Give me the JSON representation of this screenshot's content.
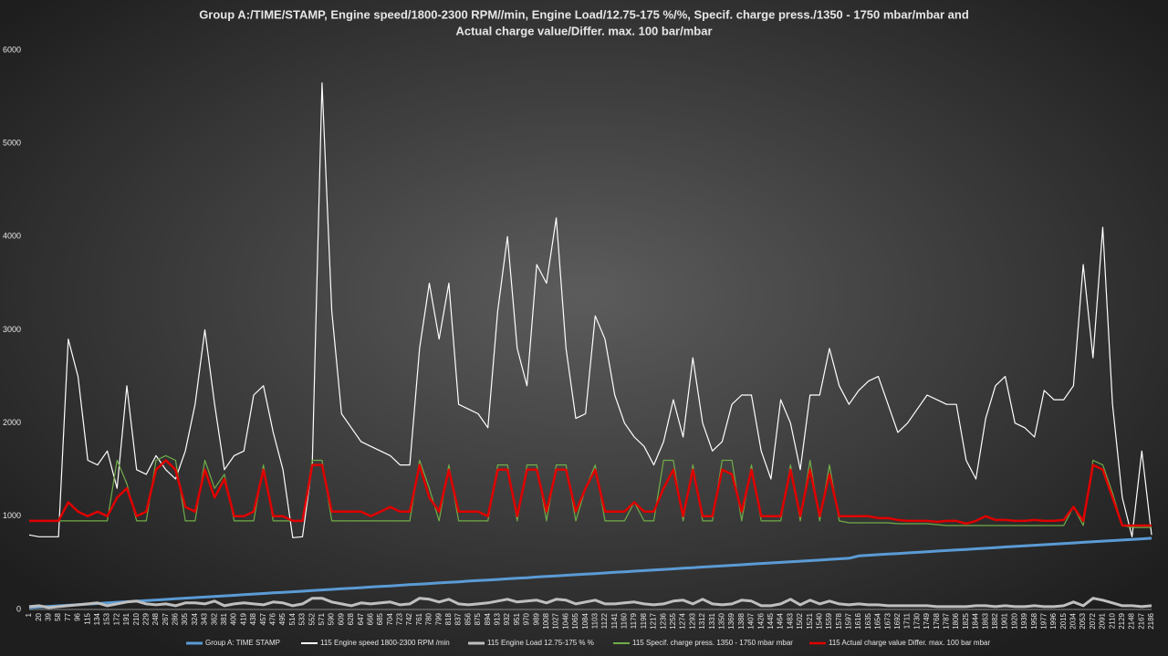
{
  "chart_data": {
    "type": "line",
    "title": [
      "Group A:/TIME/STAMP, Engine speed/1800-2300 RPM//min, Engine Load/12.75-175 %/%, Specif. charge press./1350 - 1750 mbar/mbar and",
      "Actual charge value/Differ. max. 100 bar/mbar"
    ],
    "categories": [
      1,
      20,
      39,
      58,
      77,
      96,
      115,
      134,
      153,
      172,
      191,
      210,
      229,
      248,
      267,
      286,
      305,
      324,
      343,
      362,
      381,
      400,
      419,
      438,
      457,
      476,
      495,
      514,
      533,
      552,
      571,
      590,
      609,
      628,
      647,
      666,
      685,
      704,
      723,
      742,
      761,
      780,
      799,
      818,
      837,
      856,
      875,
      894,
      913,
      932,
      951,
      970,
      989,
      1008,
      1027,
      1046,
      1065,
      1084,
      1103,
      1122,
      1141,
      1160,
      1179,
      1198,
      1217,
      1236,
      1255,
      1274,
      1293,
      1312,
      1331,
      1350,
      1369,
      1388,
      1407,
      1426,
      1445,
      1464,
      1483,
      1502,
      1521,
      1540,
      1559,
      1578,
      1597,
      1616,
      1635,
      1654,
      1673,
      1692,
      1711,
      1730,
      1749,
      1768,
      1787,
      1806,
      1825,
      1844,
      1863,
      1882,
      1901,
      1920,
      1939,
      1958,
      1977,
      1996,
      2015,
      2034,
      2053,
      2072,
      2091,
      2110,
      2129,
      2148,
      2167,
      2186
    ],
    "series": [
      {
        "name": "Group A: TIME STAMP",
        "color": "#5b9bd5",
        "width": 3,
        "values": [
          20,
          26,
          33,
          39,
          45,
          52,
          58,
          64,
          70,
          77,
          83,
          89,
          96,
          102,
          108,
          115,
          121,
          127,
          133,
          140,
          146,
          152,
          159,
          165,
          171,
          178,
          184,
          190,
          196,
          203,
          209,
          215,
          222,
          228,
          234,
          241,
          247,
          253,
          259,
          266,
          272,
          278,
          285,
          291,
          297,
          304,
          310,
          316,
          322,
          329,
          335,
          341,
          348,
          354,
          360,
          367,
          373,
          379,
          385,
          392,
          398,
          404,
          411,
          417,
          423,
          430,
          436,
          442,
          448,
          455,
          461,
          467,
          474,
          480,
          486,
          493,
          499,
          505,
          511,
          518,
          524,
          530,
          537,
          543,
          549,
          575,
          581,
          588,
          594,
          600,
          607,
          613,
          619,
          626,
          632,
          638,
          644,
          651,
          657,
          663,
          670,
          676,
          682,
          689,
          695,
          701,
          707,
          714,
          720,
          726,
          733,
          739,
          745,
          752,
          758,
          764
        ]
      },
      {
        "name": "115 Engine speed 1800-2300 RPM /min",
        "color": "#ffffff",
        "width": 1.2,
        "values": [
          800,
          780,
          780,
          780,
          2900,
          2500,
          1600,
          1550,
          1700,
          1300,
          2400,
          1500,
          1450,
          1650,
          1500,
          1400,
          1700,
          2200,
          3000,
          2200,
          1500,
          1650,
          1700,
          2300,
          2400,
          1900,
          1500,
          770,
          780,
          1550,
          5650,
          3200,
          2100,
          1950,
          1800,
          1750,
          1700,
          1650,
          1550,
          1550,
          2800,
          3500,
          2900,
          3500,
          2200,
          2150,
          2100,
          1950,
          3200,
          4000,
          2800,
          2400,
          3700,
          3500,
          4200,
          2800,
          2050,
          2100,
          3150,
          2900,
          2300,
          2000,
          1850,
          1750,
          1550,
          1800,
          2250,
          1850,
          2700,
          2000,
          1700,
          1800,
          2200,
          2300,
          2300,
          1700,
          1400,
          2250,
          2000,
          1500,
          2300,
          2300,
          2800,
          2400,
          2200,
          2350,
          2450,
          2500,
          2200,
          1900,
          2000,
          2150,
          2300,
          2250,
          2200,
          2200,
          1600,
          1400,
          2050,
          2400,
          2500,
          2000,
          1950,
          1850,
          2350,
          2250,
          2250,
          2400,
          3700,
          2700,
          4100,
          2200,
          1200,
          780,
          1700,
          800
        ]
      },
      {
        "name": "115 Engine Load 12.75-175 % %",
        "color": "#bfbfbf",
        "width": 3,
        "values": [
          30,
          40,
          20,
          30,
          40,
          50,
          60,
          70,
          40,
          60,
          80,
          90,
          60,
          50,
          60,
          40,
          70,
          70,
          60,
          90,
          40,
          60,
          70,
          60,
          50,
          80,
          70,
          40,
          60,
          120,
          120,
          80,
          60,
          40,
          70,
          60,
          70,
          80,
          50,
          60,
          120,
          110,
          80,
          110,
          60,
          50,
          60,
          70,
          90,
          110,
          80,
          90,
          100,
          70,
          110,
          100,
          60,
          80,
          100,
          60,
          60,
          70,
          80,
          60,
          50,
          60,
          90,
          100,
          60,
          110,
          60,
          50,
          60,
          100,
          90,
          40,
          40,
          60,
          110,
          50,
          100,
          60,
          90,
          60,
          50,
          60,
          50,
          50,
          40,
          40,
          40,
          40,
          40,
          30,
          30,
          30,
          30,
          40,
          40,
          30,
          40,
          30,
          30,
          40,
          30,
          30,
          40,
          80,
          40,
          120,
          100,
          70,
          40,
          40,
          30,
          40
        ]
      },
      {
        "name": "115 Specif. charge press. 1350 - 1750 mbar mbar",
        "color": "#70ad47",
        "width": 1.2,
        "values": [
          950,
          950,
          950,
          950,
          950,
          950,
          950,
          950,
          950,
          1600,
          1350,
          950,
          950,
          1600,
          1650,
          1600,
          950,
          950,
          1600,
          1300,
          1450,
          950,
          950,
          950,
          1550,
          950,
          950,
          950,
          950,
          1600,
          1600,
          950,
          950,
          950,
          950,
          950,
          950,
          950,
          950,
          950,
          1600,
          1300,
          950,
          1550,
          950,
          950,
          950,
          950,
          1550,
          1550,
          950,
          1550,
          1550,
          950,
          1550,
          1550,
          950,
          1300,
          1550,
          950,
          950,
          950,
          1150,
          950,
          950,
          1600,
          1600,
          950,
          1550,
          950,
          950,
          1600,
          1600,
          950,
          1550,
          950,
          950,
          950,
          1550,
          950,
          1600,
          950,
          1550,
          950,
          930,
          930,
          930,
          930,
          930,
          920,
          920,
          920,
          920,
          910,
          900,
          900,
          900,
          900,
          900,
          900,
          900,
          900,
          900,
          900,
          900,
          900,
          900,
          1100,
          900,
          1600,
          1550,
          1250,
          900,
          880,
          880,
          880
        ]
      },
      {
        "name": "115 Actual charge value Differ. max. 100 bar mbar",
        "color": "#e00000",
        "width": 2.5,
        "values": [
          950,
          950,
          950,
          950,
          1150,
          1050,
          1000,
          1050,
          1000,
          1200,
          1300,
          1000,
          1050,
          1500,
          1600,
          1500,
          1100,
          1050,
          1500,
          1200,
          1400,
          1000,
          1000,
          1050,
          1500,
          1000,
          1000,
          950,
          950,
          1550,
          1550,
          1050,
          1050,
          1050,
          1050,
          1000,
          1050,
          1100,
          1050,
          1050,
          1550,
          1200,
          1050,
          1500,
          1050,
          1050,
          1050,
          1000,
          1500,
          1500,
          1000,
          1500,
          1500,
          1050,
          1500,
          1500,
          1050,
          1300,
          1500,
          1050,
          1050,
          1050,
          1150,
          1050,
          1050,
          1300,
          1500,
          1000,
          1500,
          1000,
          1000,
          1500,
          1450,
          1050,
          1500,
          1000,
          1000,
          1000,
          1500,
          1000,
          1500,
          1000,
          1450,
          1000,
          1000,
          1000,
          1000,
          980,
          980,
          960,
          950,
          950,
          950,
          940,
          950,
          950,
          920,
          950,
          1000,
          960,
          960,
          950,
          950,
          960,
          950,
          950,
          960,
          1100,
          950,
          1550,
          1500,
          1200,
          900,
          900,
          900,
          900
        ]
      }
    ],
    "ylim": [
      0,
      6000
    ],
    "yticks": [
      0,
      1000,
      2000,
      3000,
      4000,
      5000,
      6000
    ],
    "grid": false
  }
}
